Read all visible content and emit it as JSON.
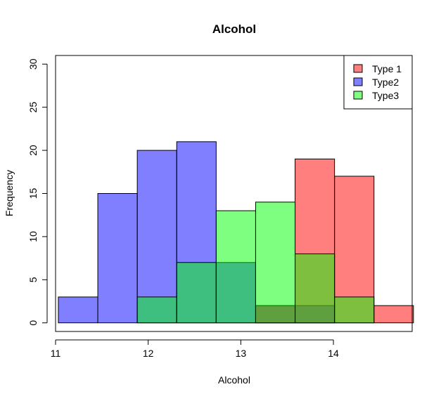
{
  "chart_data": {
    "type": "bar",
    "subtype": "overlaid-histogram",
    "title": "Alcohol",
    "xlabel": "Alcohol",
    "ylabel": "Frequency",
    "xlim": [
      11.0,
      14.85
    ],
    "ylim": [
      -1,
      31
    ],
    "x_ticks": [
      11,
      12,
      13,
      14
    ],
    "y_ticks": [
      0,
      5,
      10,
      15,
      20,
      25,
      30
    ],
    "bin_edges": [
      11.03,
      11.456,
      11.882,
      12.308,
      12.734,
      13.16,
      13.586,
      14.012,
      14.438,
      14.864
    ],
    "series": [
      {
        "name": "Type2",
        "color": "#0000FF",
        "alpha": 0.5,
        "values": [
          3,
          15,
          20,
          21,
          7,
          2,
          2,
          0,
          0
        ]
      },
      {
        "name": "Type 1",
        "color": "#FF0000",
        "alpha": 0.5,
        "values": [
          0,
          0,
          0,
          0,
          0,
          2,
          19,
          17,
          2
        ]
      },
      {
        "name": "Type3",
        "color": "#00FF00",
        "alpha": 0.5,
        "values": [
          0,
          0,
          3,
          7,
          13,
          14,
          8,
          3,
          0
        ]
      }
    ],
    "legend": {
      "position": "top-right",
      "entries": [
        {
          "label": "Type 1",
          "color": "#FF0000"
        },
        {
          "label": "Type2",
          "color": "#0000FF"
        },
        {
          "label": "Type3",
          "color": "#00FF00"
        }
      ]
    },
    "grid": false
  }
}
